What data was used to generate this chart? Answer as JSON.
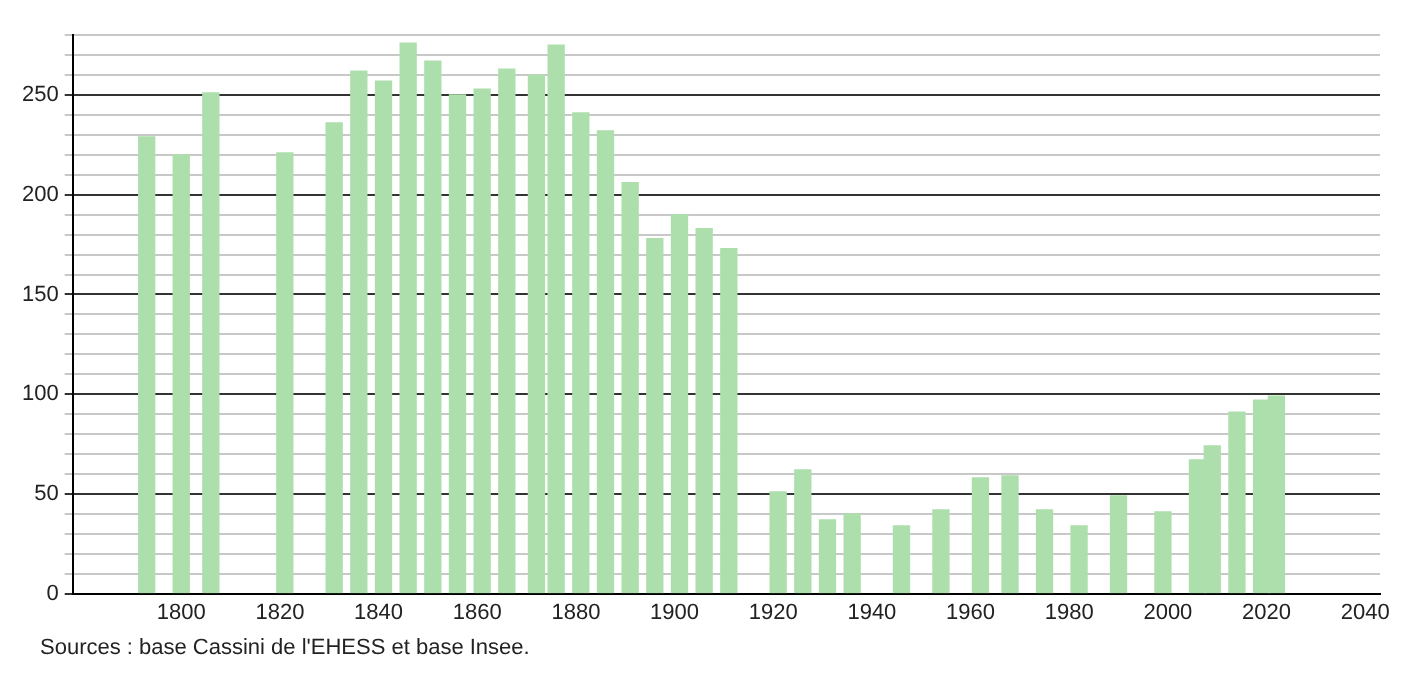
{
  "chart_data": {
    "type": "bar",
    "x": [
      1793,
      1800,
      1806,
      1821,
      1831,
      1836,
      1841,
      1846,
      1851,
      1856,
      1861,
      1866,
      1872,
      1876,
      1881,
      1886,
      1891,
      1896,
      1901,
      1906,
      1911,
      1921,
      1926,
      1931,
      1936,
      1946,
      1954,
      1962,
      1968,
      1975,
      1982,
      1990,
      1999,
      2006,
      2009,
      2014,
      2019,
      2022
    ],
    "values": [
      229,
      220,
      251,
      221,
      236,
      262,
      257,
      276,
      267,
      250,
      253,
      263,
      260,
      275,
      241,
      232,
      206,
      178,
      190,
      183,
      173,
      51,
      62,
      37,
      40,
      34,
      42,
      58,
      59,
      42,
      34,
      49,
      41,
      67,
      74,
      91,
      97,
      99
    ],
    "color": "#addfad",
    "xlim": [
      1778,
      2043
    ],
    "xticks": [
      1800,
      1820,
      1840,
      1860,
      1880,
      1900,
      1920,
      1940,
      1960,
      1980,
      2000,
      2020,
      2040
    ],
    "ylim": [
      0,
      280
    ],
    "yticks": [
      0,
      {
        "value": 10,
        "label": null
      },
      {
        "value": 20,
        "label": null
      },
      {
        "value": 30,
        "label": null
      },
      {
        "value": 40,
        "label": null
      },
      50,
      {
        "value": 60,
        "label": null
      },
      {
        "value": 70,
        "label": null
      },
      {
        "value": 80,
        "label": null
      },
      {
        "value": 90,
        "label": null
      },
      100,
      {
        "value": 110,
        "label": null
      },
      {
        "value": 120,
        "label": null
      },
      {
        "value": 130,
        "label": null
      },
      {
        "value": 140,
        "label": null
      },
      150,
      {
        "value": 160,
        "label": null
      },
      {
        "value": 170,
        "label": null
      },
      {
        "value": 180,
        "label": null
      },
      {
        "value": 190,
        "label": null
      },
      200,
      {
        "value": 210,
        "label": null
      },
      {
        "value": 220,
        "label": null
      },
      {
        "value": 230,
        "label": null
      },
      {
        "value": 240,
        "label": null
      },
      250,
      {
        "value": 260,
        "label": null
      },
      {
        "value": 270,
        "label": null
      },
      {
        "value": 280,
        "label": null
      }
    ],
    "grid": "y",
    "annotations": [
      "Sources : base Cassini de l'EHESS et base Insee."
    ]
  }
}
